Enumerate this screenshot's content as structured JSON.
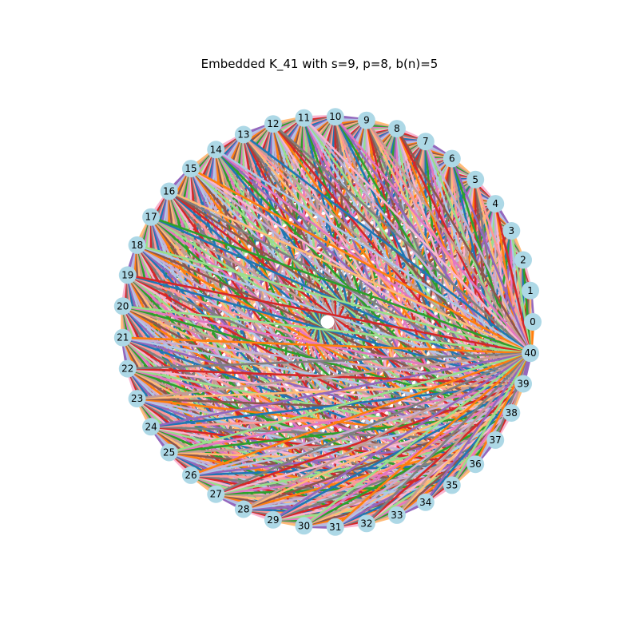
{
  "figure": {
    "title": "Embedded K_41 with s=9, p=8, b(n)=5"
  },
  "graph": {
    "n": 41,
    "node_labels": [
      "0",
      "1",
      "2",
      "3",
      "4",
      "5",
      "6",
      "7",
      "8",
      "9",
      "10",
      "11",
      "12",
      "13",
      "14",
      "15",
      "16",
      "17",
      "18",
      "19",
      "20",
      "21",
      "22",
      "23",
      "24",
      "25",
      "26",
      "27",
      "28",
      "29",
      "30",
      "31",
      "32",
      "33",
      "34",
      "35",
      "36",
      "37",
      "38",
      "39",
      "40"
    ],
    "node_color": "#add8e6",
    "center_node_color": "#ffffff",
    "edge_palette": [
      "#1f77b4",
      "#ff7f0e",
      "#2ca02c",
      "#d62728",
      "#9467bd",
      "#8c564b",
      "#e377c2",
      "#7f7f7f",
      "#aec7e8",
      "#ffbb78",
      "#98df8a",
      "#ff9896",
      "#c5b0d5",
      "#c49c94",
      "#f7b6d2"
    ]
  }
}
